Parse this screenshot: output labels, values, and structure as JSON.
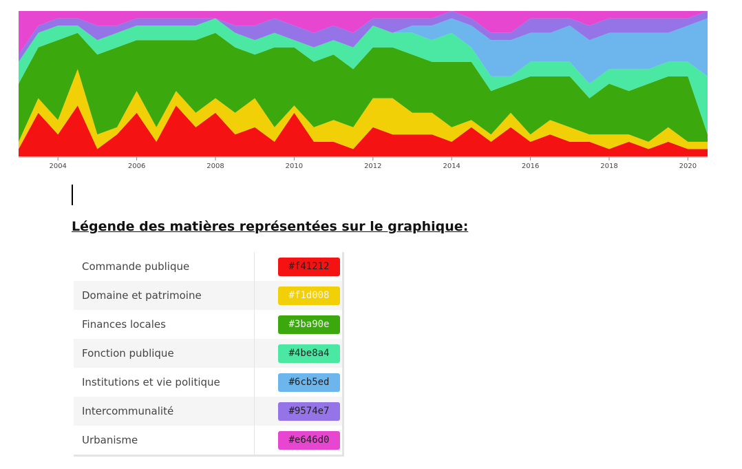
{
  "chart_data": {
    "type": "stacked_area",
    "x": [
      2003,
      2003.5,
      2004,
      2004.5,
      2005,
      2005.5,
      2006,
      2006.5,
      2007,
      2007.5,
      2008,
      2008.5,
      2009,
      2009.5,
      2010,
      2010.5,
      2011,
      2011.5,
      2012,
      2012.5,
      2013,
      2013.5,
      2014,
      2014.5,
      2015,
      2015.5,
      2016,
      2016.5,
      2017,
      2017.5,
      2018,
      2018.5,
      2019,
      2019.5,
      2020,
      2020.5
    ],
    "xlim": [
      2003,
      2020.5
    ],
    "xticks": [
      2004,
      2006,
      2008,
      2010,
      2012,
      2014,
      2016,
      2018,
      2020
    ],
    "ylim": [
      0,
      100
    ],
    "series": [
      {
        "name": "Commande publique",
        "color": "#f41212",
        "values": [
          5,
          30,
          15,
          35,
          5,
          15,
          30,
          10,
          35,
          20,
          30,
          15,
          20,
          10,
          30,
          10,
          10,
          5,
          20,
          15,
          15,
          15,
          10,
          20,
          10,
          20,
          10,
          15,
          10,
          10,
          5,
          10,
          5,
          10,
          5,
          5
        ]
      },
      {
        "name": "Domaine et patrimoine",
        "color": "#f1d008",
        "values": [
          5,
          10,
          10,
          25,
          10,
          5,
          15,
          10,
          10,
          10,
          10,
          15,
          20,
          10,
          5,
          10,
          15,
          15,
          20,
          25,
          15,
          15,
          10,
          5,
          5,
          10,
          5,
          10,
          10,
          5,
          10,
          5,
          5,
          10,
          5,
          5
        ]
      },
      {
        "name": "Finances locales",
        "color": "#3ba90e",
        "values": [
          40,
          35,
          55,
          25,
          55,
          55,
          35,
          60,
          35,
          50,
          45,
          45,
          30,
          55,
          40,
          45,
          45,
          40,
          35,
          35,
          40,
          35,
          45,
          40,
          30,
          20,
          40,
          30,
          35,
          25,
          35,
          30,
          40,
          35,
          45,
          5
        ]
      },
      {
        "name": "Fonction publique",
        "color": "#4be8a4",
        "values": [
          15,
          10,
          10,
          5,
          10,
          10,
          10,
          10,
          10,
          10,
          10,
          10,
          10,
          10,
          5,
          10,
          10,
          15,
          15,
          10,
          15,
          15,
          20,
          10,
          10,
          5,
          10,
          10,
          10,
          10,
          10,
          15,
          10,
          10,
          10,
          40
        ]
      },
      {
        "name": "Institutions et vie politique",
        "color": "#6cb5ed",
        "values": [
          0,
          0,
          0,
          0,
          0,
          0,
          0,
          0,
          0,
          0,
          0,
          0,
          0,
          0,
          0,
          0,
          0,
          0,
          0,
          0,
          5,
          10,
          10,
          15,
          25,
          25,
          20,
          20,
          25,
          30,
          25,
          25,
          25,
          20,
          25,
          40
        ]
      },
      {
        "name": "Intercommunalité",
        "color": "#9574e7",
        "values": [
          5,
          5,
          5,
          5,
          10,
          5,
          5,
          5,
          5,
          5,
          0,
          5,
          10,
          10,
          10,
          10,
          10,
          10,
          5,
          10,
          5,
          5,
          5,
          5,
          5,
          5,
          10,
          10,
          5,
          10,
          10,
          10,
          10,
          10,
          5,
          5
        ]
      },
      {
        "name": "Urbanisme",
        "color": "#e646d0",
        "values": [
          30,
          10,
          5,
          5,
          10,
          10,
          5,
          5,
          5,
          5,
          5,
          10,
          10,
          5,
          10,
          15,
          10,
          15,
          5,
          5,
          5,
          5,
          0,
          5,
          15,
          15,
          5,
          5,
          5,
          10,
          5,
          5,
          5,
          5,
          5,
          0
        ]
      }
    ]
  },
  "heading": "Légende des matières représentées sur le graphique:",
  "legend_table": {
    "rows": [
      [
        "Commande publique",
        "#f41212"
      ],
      [
        "Domaine et patrimoine",
        "#f1d008"
      ],
      [
        "Finances locales",
        "#3ba90e"
      ],
      [
        "Fonction publique",
        "#4be8a4"
      ],
      [
        "Institutions et vie politique",
        "#6cb5ed"
      ],
      [
        "Intercommunalité",
        "#9574e7"
      ],
      [
        "Urbanisme",
        "#e646d0"
      ]
    ]
  }
}
